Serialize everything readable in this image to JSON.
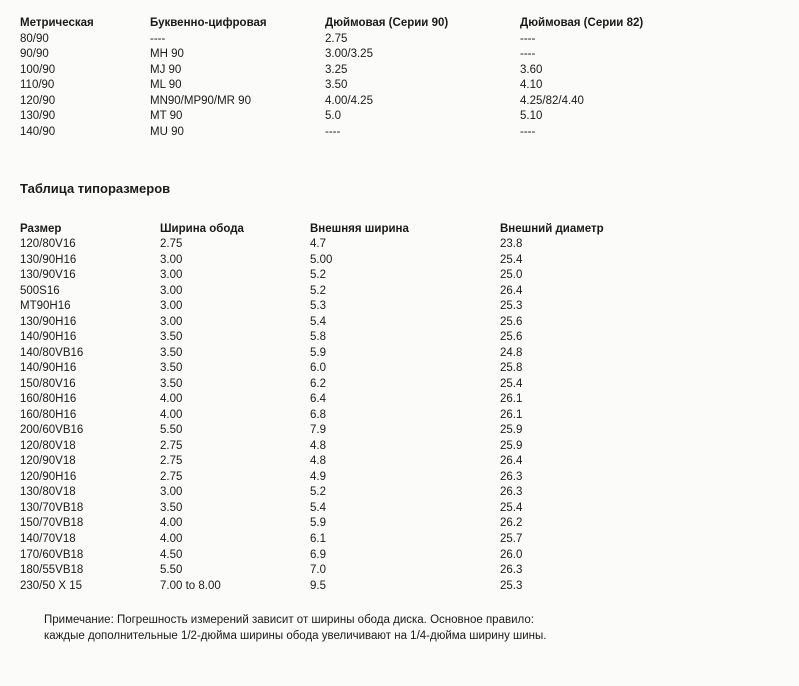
{
  "table1": {
    "headers": [
      "Метрическая",
      "Буквенно-цифровая",
      "Дюймовая (Серии 90)",
      "Дюймовая (Серии 82)"
    ],
    "rows": [
      [
        "80/90",
        "----",
        "2.75",
        "----"
      ],
      [
        "90/90",
        "MH 90",
        "3.00/3.25",
        "----"
      ],
      [
        "100/90",
        "MJ 90",
        "3.25",
        "3.60"
      ],
      [
        "110/90",
        "ML 90",
        "3.50",
        "4.10"
      ],
      [
        "120/90",
        "MN90/MP90/MR 90",
        "4.00/4.25",
        "4.25/82/4.40"
      ],
      [
        "130/90",
        "MT 90",
        "5.0",
        "5.10"
      ],
      [
        "140/90",
        "MU 90",
        "----",
        "----"
      ]
    ]
  },
  "section_title": "Таблица типоразмеров",
  "table2": {
    "headers": [
      "Размер",
      "Ширина обода",
      "Внешняя ширина",
      "Внешний диаметр"
    ],
    "rows": [
      [
        "120/80V16",
        "2.75",
        "4.7",
        "23.8"
      ],
      [
        "130/90H16",
        "3.00",
        "5.00",
        "25.4"
      ],
      [
        "130/90V16",
        "3.00",
        "5.2",
        "25.0"
      ],
      [
        "500S16",
        "3.00",
        "5.2",
        "26.4"
      ],
      [
        "MT90H16",
        "3.00",
        "5.3",
        "25.3"
      ],
      [
        "130/90H16",
        "3.00",
        "5.4",
        "25.6"
      ],
      [
        "140/90H16",
        "3.50",
        "5.8",
        "25.6"
      ],
      [
        "140/80VB16",
        "3.50",
        "5.9",
        "24.8"
      ],
      [
        "140/90H16",
        "3.50",
        "6.0",
        "25.8"
      ],
      [
        "150/80V16",
        "3.50",
        "6.2",
        "25.4"
      ],
      [
        "160/80H16",
        "4.00",
        "6.4",
        "26.1"
      ],
      [
        "160/80H16",
        "4.00",
        "6.8",
        "26.1"
      ],
      [
        "200/60VB16",
        "5.50",
        "7.9",
        "25.9"
      ],
      [
        "120/80V18",
        "2.75",
        "4.8",
        "25.9"
      ],
      [
        "120/90V18",
        "2.75",
        "4.8",
        "26.4"
      ],
      [
        "120/90H16",
        "2.75",
        "4.9",
        "26.3"
      ],
      [
        "130/80V18",
        "3.00",
        "5.2",
        "26.3"
      ],
      [
        "130/70VB18",
        "3.50",
        "5.4",
        "25.4"
      ],
      [
        "150/70VB18",
        "4.00",
        "5.9",
        "26.2"
      ],
      [
        "140/70V18",
        "4.00",
        "6.1",
        "25.7"
      ],
      [
        "170/60VB18",
        "4.50",
        "6.9",
        "26.0"
      ],
      [
        "180/55VB18",
        "5.50",
        "7.0",
        "26.3"
      ],
      [
        "230/50 X 15",
        "7.00 to 8.00",
        "9.5",
        "25.3"
      ]
    ]
  },
  "note_line1": "Примечание: Погрешность измерений зависит от ширины обода диска. Основное правило:",
  "note_line2": "каждые дополнительные 1/2-дюйма ширины обода увеличивают на  1/4-дюйма ширину шины."
}
